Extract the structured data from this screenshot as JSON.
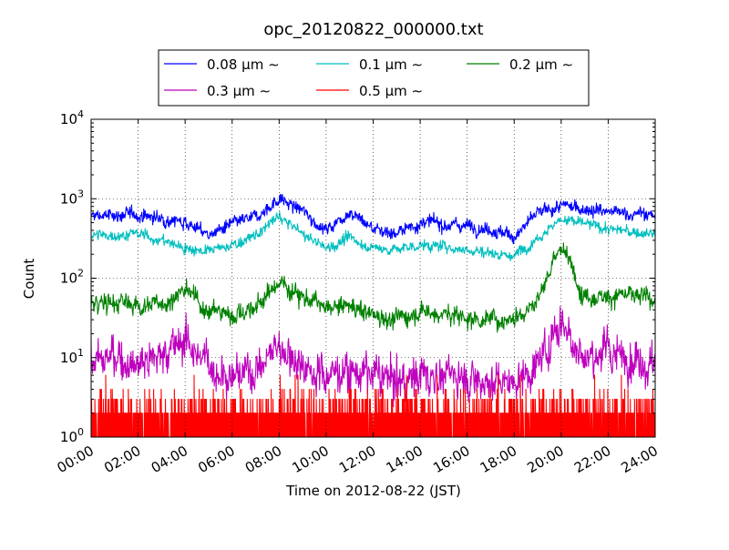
{
  "chart_data": {
    "type": "line",
    "title": "opc_20120822_000000.txt",
    "xlabel": "Time on 2012-08-22 (JST)",
    "ylabel": "Count",
    "yscale": "log",
    "ylim": [
      1,
      10000
    ],
    "xlim": [
      "00:00",
      "24:00"
    ],
    "x_ticks": [
      "00:00",
      "02:00",
      "04:00",
      "06:00",
      "08:00",
      "10:00",
      "12:00",
      "14:00",
      "16:00",
      "18:00",
      "20:00",
      "22:00",
      "24:00"
    ],
    "y_ticks": [
      {
        "base": "10",
        "exp": "0",
        "value": 1
      },
      {
        "base": "10",
        "exp": "1",
        "value": 10
      },
      {
        "base": "10",
        "exp": "2",
        "value": 100
      },
      {
        "base": "10",
        "exp": "3",
        "value": 1000
      },
      {
        "base": "10",
        "exp": "4",
        "value": 10000
      }
    ],
    "grid": true,
    "legend_position": "top-center",
    "x_hours": [
      0,
      1,
      2,
      3,
      4,
      5,
      6,
      7,
      8,
      9,
      10,
      11,
      12,
      13,
      14,
      15,
      16,
      17,
      18,
      19,
      20,
      21,
      22,
      23,
      24
    ],
    "series": [
      {
        "name": "0.08 μm ∼",
        "color": "#0000ff",
        "noise": 0.06,
        "values": [
          600,
          620,
          630,
          560,
          520,
          350,
          470,
          580,
          1000,
          700,
          400,
          700,
          420,
          370,
          500,
          480,
          460,
          420,
          330,
          650,
          800,
          760,
          680,
          650,
          620
        ]
      },
      {
        "name": "0.1 μm ∼",
        "color": "#00bfbf",
        "noise": 0.05,
        "values": [
          340,
          350,
          360,
          300,
          240,
          220,
          260,
          340,
          600,
          360,
          240,
          320,
          240,
          230,
          260,
          250,
          230,
          210,
          190,
          330,
          560,
          480,
          420,
          380,
          360
        ]
      },
      {
        "name": "0.2 μm ∼",
        "color": "#008000",
        "noise": 0.09,
        "values": [
          45,
          50,
          45,
          48,
          70,
          40,
          35,
          42,
          90,
          60,
          40,
          45,
          35,
          30,
          40,
          35,
          32,
          30,
          32,
          55,
          260,
          60,
          62,
          58,
          55
        ]
      },
      {
        "name": "0.3 μm ∼",
        "color": "#bf00bf",
        "noise": 0.18,
        "values": [
          9,
          10,
          9,
          11,
          17,
          8,
          6,
          7,
          15,
          8,
          6,
          7,
          6,
          5,
          6,
          6,
          6,
          5,
          5,
          8,
          30,
          10,
          12,
          10,
          9
        ]
      },
      {
        "name": "0.5 μm ∼",
        "color": "#ff0000",
        "noise": 0,
        "values": [
          2,
          2,
          2,
          2,
          2,
          2,
          2,
          2,
          2,
          2,
          2,
          2,
          2,
          2,
          2,
          2,
          2,
          2,
          2,
          2,
          2,
          2,
          2,
          2,
          2
        ]
      }
    ]
  }
}
